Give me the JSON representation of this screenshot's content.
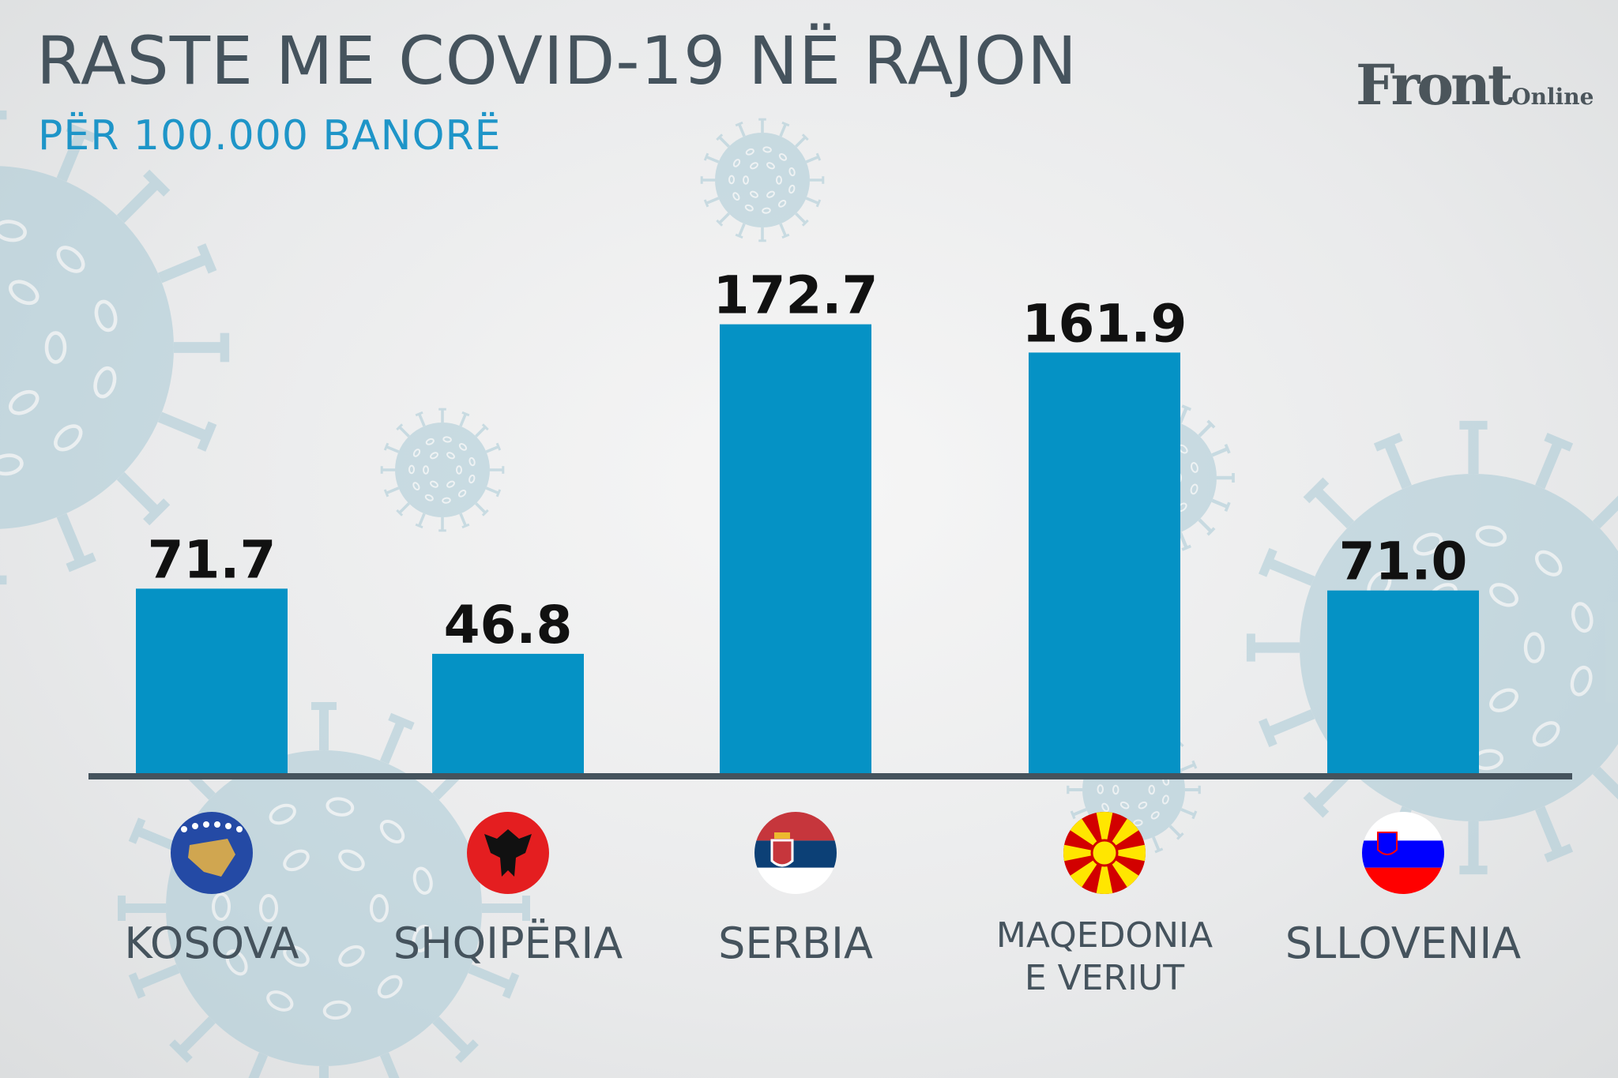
{
  "header": {
    "title": "RASTE ME COVID-19 NË RAJON",
    "subtitle": "PËR 100.000 BANORË"
  },
  "logo": {
    "main": "Front",
    "sub": "Online"
  },
  "colors": {
    "bar": "#0592c5",
    "title": "#45535d",
    "subtitle": "#1e95c8",
    "axis": "#45535d",
    "value_label": "#111111",
    "virus": "#a9cad6"
  },
  "chart_data": {
    "type": "bar",
    "title": "RASTE ME COVID-19 NË RAJON",
    "subtitle": "PËR 100.000 BANORË",
    "categories": [
      "KOSOVA",
      "SHQIPËRIA",
      "SERBIA",
      "MAQEDONIA E VERIUT",
      "SLLOVENIA"
    ],
    "values": [
      71.7,
      46.8,
      172.7,
      161.9,
      71.0
    ],
    "value_labels": [
      "71.7",
      "46.8",
      "172.7",
      "161.9",
      "71.0"
    ],
    "category_lines": [
      [
        "KOSOVA"
      ],
      [
        "SHQIPËRIA"
      ],
      [
        "SERBIA"
      ],
      [
        "MAQEDONIA",
        "E VERIUT"
      ],
      [
        "SLLOVENIA"
      ]
    ],
    "flag_icons": [
      "kosovo-flag-icon",
      "albania-flag-icon",
      "serbia-flag-icon",
      "north-macedonia-flag-icon",
      "slovenia-flag-icon"
    ],
    "ylim": [
      0,
      175
    ],
    "xlabel": "",
    "ylabel": "",
    "grid": false,
    "legend": "none"
  }
}
